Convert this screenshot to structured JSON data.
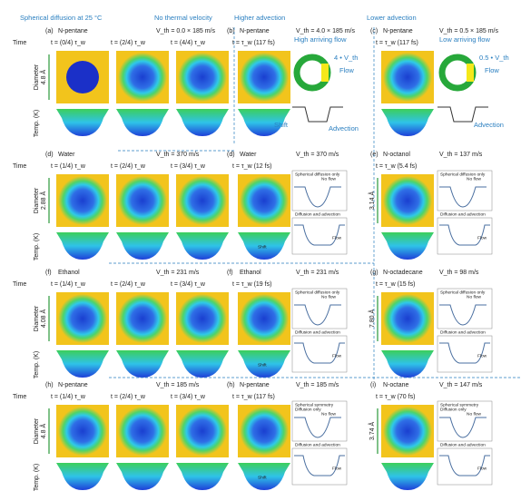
{
  "header": [
    "Spherical diffusion at 25 °C",
    "No thermal velocity",
    "Higher advection",
    "Lower advection"
  ],
  "axis": {
    "time": "Time",
    "diameter": "Diameter",
    "temp": "Temp. (K)"
  },
  "rows": [
    [
      {
        "label": "(a)",
        "liquid": "N-pentane",
        "velocity": "V_th = 0.0 × 185 m/s",
        "scale": "4.8 Å",
        "times": [
          "t = (0/4) τ_w",
          "t = (2/4) τ_w",
          "t = (4/4) τ_w"
        ]
      },
      {
        "label": "(b)",
        "liquid": "N-pentane",
        "velocity": "V_th = 4.0 × 185 m/s",
        "times": [
          "t = τ_w (117 fs)"
        ],
        "notes": [
          "High arriving flow",
          "4 • V_th",
          "Flow",
          "Shift",
          "Advection"
        ]
      },
      {
        "label": "(c)",
        "liquid": "N-pentane",
        "velocity": "V_th = 0.5 × 185 m/s",
        "times": [
          "t = τ_w (117 fs)"
        ],
        "notes": [
          "Low arriving flow",
          "0.5 • V_th",
          "Flow",
          "Advection"
        ]
      }
    ],
    [
      {
        "label": "(d)",
        "liquid": "Water",
        "velocity": "V_th = 370 m/s",
        "scale": "2.88 Å",
        "times": [
          "t = (1/4) τ_w",
          "t = (2/4) τ_w",
          "t = (3/4) τ_w"
        ]
      },
      {
        "label": "(d)",
        "liquid": "Water",
        "velocity": "V_th = 370 m/s",
        "times": [
          "t = τ_w (12 fs)"
        ],
        "notes": [
          "Spherical diffusion only",
          "No flow",
          "Diffusion and advection",
          "Flow",
          "Shift"
        ]
      },
      {
        "label": "(e)",
        "liquid": "N-octanol",
        "velocity": "V_th = 137 m/s",
        "scale": "3.14 Å",
        "times": [
          "t = τ_w (5.4 fs)"
        ],
        "notes": [
          "Spherical diffusion only",
          "No flow",
          "Diffusion and advection",
          "Flow"
        ]
      }
    ],
    [
      {
        "label": "(f)",
        "liquid": "Ethanol",
        "velocity": "V_th = 231 m/s",
        "scale": "4.08 Å",
        "times": [
          "t = (1/4) τ_w",
          "t = (2/4) τ_w",
          "t = (3/4) τ_w"
        ]
      },
      {
        "label": "(f)",
        "liquid": "Ethanol",
        "velocity": "V_th = 231 m/s",
        "times": [
          "t = τ_w (19 fs)"
        ],
        "notes": [
          "Spherical diffusion only",
          "No flow",
          "Diffusion and advection",
          "Flow",
          "Shift"
        ]
      },
      {
        "label": "(g)",
        "liquid": "N-octadecane",
        "velocity": "V_th = 98 m/s",
        "scale": "7.80 Å",
        "times": [
          "t = τ_w (15 fs)"
        ],
        "notes": [
          "Spherical diffusion only",
          "No flow",
          "Diffusion and advection",
          "Flow"
        ]
      }
    ],
    [
      {
        "label": "(h)",
        "liquid": "N-pentane",
        "velocity": "V_th = 185 m/s",
        "scale": "4.8 Å",
        "times": [
          "t = (1/4) τ_w",
          "t = (2/4) τ_w",
          "t = (3/4) τ_w"
        ]
      },
      {
        "label": "(h)",
        "liquid": "N-pentane",
        "velocity": "V_th = 185 m/s",
        "times": [
          "t = τ_w (117 fs)"
        ],
        "notes": [
          "Spherical symmetry",
          "Diffusion only",
          "No flow",
          "Diffusion and advection",
          "Flow",
          "Shift"
        ]
      },
      {
        "label": "(i)",
        "liquid": "N-octane",
        "velocity": "V_th = 147 m/s",
        "scale": "3.74 Å",
        "times": [
          "t = τ_w (70 fs)"
        ],
        "notes": [
          "Spherical symmetry",
          "Diffusion only",
          "No flow",
          "Diffusion and advection",
          "Flow"
        ]
      }
    ]
  ]
}
